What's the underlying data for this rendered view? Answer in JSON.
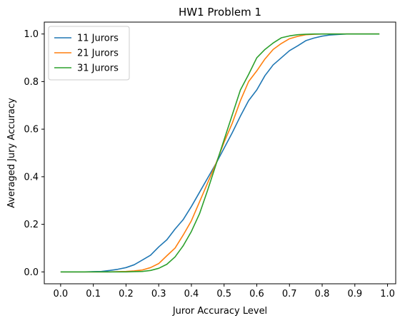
{
  "chart_data": {
    "type": "line",
    "title": "HW1 Problem 1",
    "xlabel": "Juror Accuracy Level",
    "ylabel": "Averaged Jury Accuracy",
    "xlim": [
      -0.05,
      1.025
    ],
    "ylim": [
      -0.05,
      1.05
    ],
    "xticks": [
      "0.0",
      "0.1",
      "0.2",
      "0.3",
      "0.4",
      "0.5",
      "0.6",
      "0.7",
      "0.8",
      "0.9",
      "1.0"
    ],
    "yticks": [
      "0.0",
      "0.2",
      "0.4",
      "0.6",
      "0.8",
      "1.0"
    ],
    "grid": false,
    "legend_position": "upper-left",
    "x": [
      0.0,
      0.025,
      0.05,
      0.075,
      0.1,
      0.125,
      0.15,
      0.175,
      0.2,
      0.225,
      0.25,
      0.275,
      0.3,
      0.325,
      0.35,
      0.375,
      0.4,
      0.425,
      0.45,
      0.475,
      0.5,
      0.525,
      0.55,
      0.575,
      0.6,
      0.625,
      0.65,
      0.675,
      0.7,
      0.725,
      0.75,
      0.775,
      0.8,
      0.825,
      0.85,
      0.875,
      0.9,
      0.925,
      0.95,
      0.975
    ],
    "series": [
      {
        "name": "11 Jurors",
        "color": "#1f77b4",
        "values": [
          0.0,
          0.0,
          0.0,
          0.0,
          0.001,
          0.002,
          0.006,
          0.011,
          0.018,
          0.03,
          0.05,
          0.07,
          0.105,
          0.135,
          0.18,
          0.22,
          0.275,
          0.335,
          0.395,
          0.455,
          0.52,
          0.585,
          0.655,
          0.72,
          0.765,
          0.825,
          0.87,
          0.9,
          0.93,
          0.95,
          0.972,
          0.983,
          0.991,
          0.996,
          0.998,
          1.0,
          1.0,
          1.0,
          1.0,
          1.0
        ]
      },
      {
        "name": "21 Jurors",
        "color": "#ff7f0e",
        "values": [
          0.0,
          0.0,
          0.0,
          0.0,
          0.0,
          0.0,
          0.0,
          0.001,
          0.002,
          0.004,
          0.008,
          0.018,
          0.035,
          0.068,
          0.1,
          0.155,
          0.215,
          0.295,
          0.375,
          0.455,
          0.545,
          0.625,
          0.72,
          0.8,
          0.845,
          0.895,
          0.935,
          0.96,
          0.98,
          0.99,
          0.997,
          0.999,
          1.0,
          1.0,
          1.0,
          1.0,
          1.0,
          1.0,
          1.0,
          1.0
        ]
      },
      {
        "name": "31 Jurors",
        "color": "#2ca02c",
        "values": [
          0.0,
          0.0,
          0.0,
          0.0,
          0.0,
          0.0,
          0.0,
          0.0,
          0.0,
          0.001,
          0.002,
          0.006,
          0.015,
          0.032,
          0.063,
          0.11,
          0.17,
          0.245,
          0.345,
          0.45,
          0.555,
          0.66,
          0.765,
          0.83,
          0.9,
          0.935,
          0.962,
          0.984,
          0.992,
          0.997,
          0.999,
          1.0,
          1.0,
          1.0,
          1.0,
          1.0,
          1.0,
          1.0,
          1.0,
          1.0
        ]
      }
    ]
  }
}
